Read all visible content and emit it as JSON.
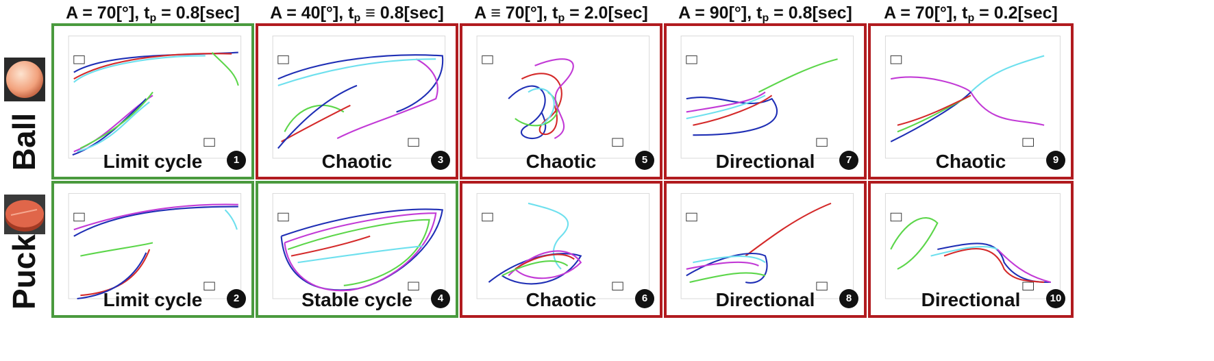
{
  "headers": [
    {
      "main": "A = 70[°], t",
      "sub": "p",
      "rest": " = 0.8[sec]"
    },
    {
      "main": "A = 40[°], t",
      "sub": "p",
      "rest": " ≡ 0.8[sec]"
    },
    {
      "main": "A ≡ 70[°], t",
      "sub": "p",
      "rest": " = 2.0[sec]"
    },
    {
      "main": "A = 90[°], t",
      "sub": "p",
      "rest": " = 0.8[sec]"
    },
    {
      "main": "A = 70[°], t",
      "sub": "p",
      "rest": " = 0.2[sec]"
    }
  ],
  "rows": [
    {
      "label": "Ball",
      "image": "ball-icon"
    },
    {
      "label": "Puck",
      "image": "puck-icon"
    }
  ],
  "cells": [
    {
      "label": "Limit cycle",
      "num": "1",
      "status": "green"
    },
    {
      "label": "Chaotic",
      "num": "3",
      "status": "red"
    },
    {
      "label": "Chaotic",
      "num": "5",
      "status": "red"
    },
    {
      "label": "Directional",
      "num": "7",
      "status": "red"
    },
    {
      "label": "Chaotic",
      "num": "9",
      "status": "red"
    },
    {
      "label": "Limit cycle",
      "num": "2",
      "status": "green"
    },
    {
      "label": "Stable cycle",
      "num": "4",
      "status": "green"
    },
    {
      "label": "Chaotic",
      "num": "6",
      "status": "red"
    },
    {
      "label": "Directional",
      "num": "8",
      "status": "red"
    },
    {
      "label": "Directional",
      "num": "10",
      "status": "red"
    }
  ],
  "colors": {
    "green_border": "#4a9a3e",
    "red_border": "#b11b1f",
    "traj": [
      "#1f2fb5",
      "#d42a2a",
      "#5cd64a",
      "#6ee0ee",
      "#c23ad6"
    ]
  }
}
